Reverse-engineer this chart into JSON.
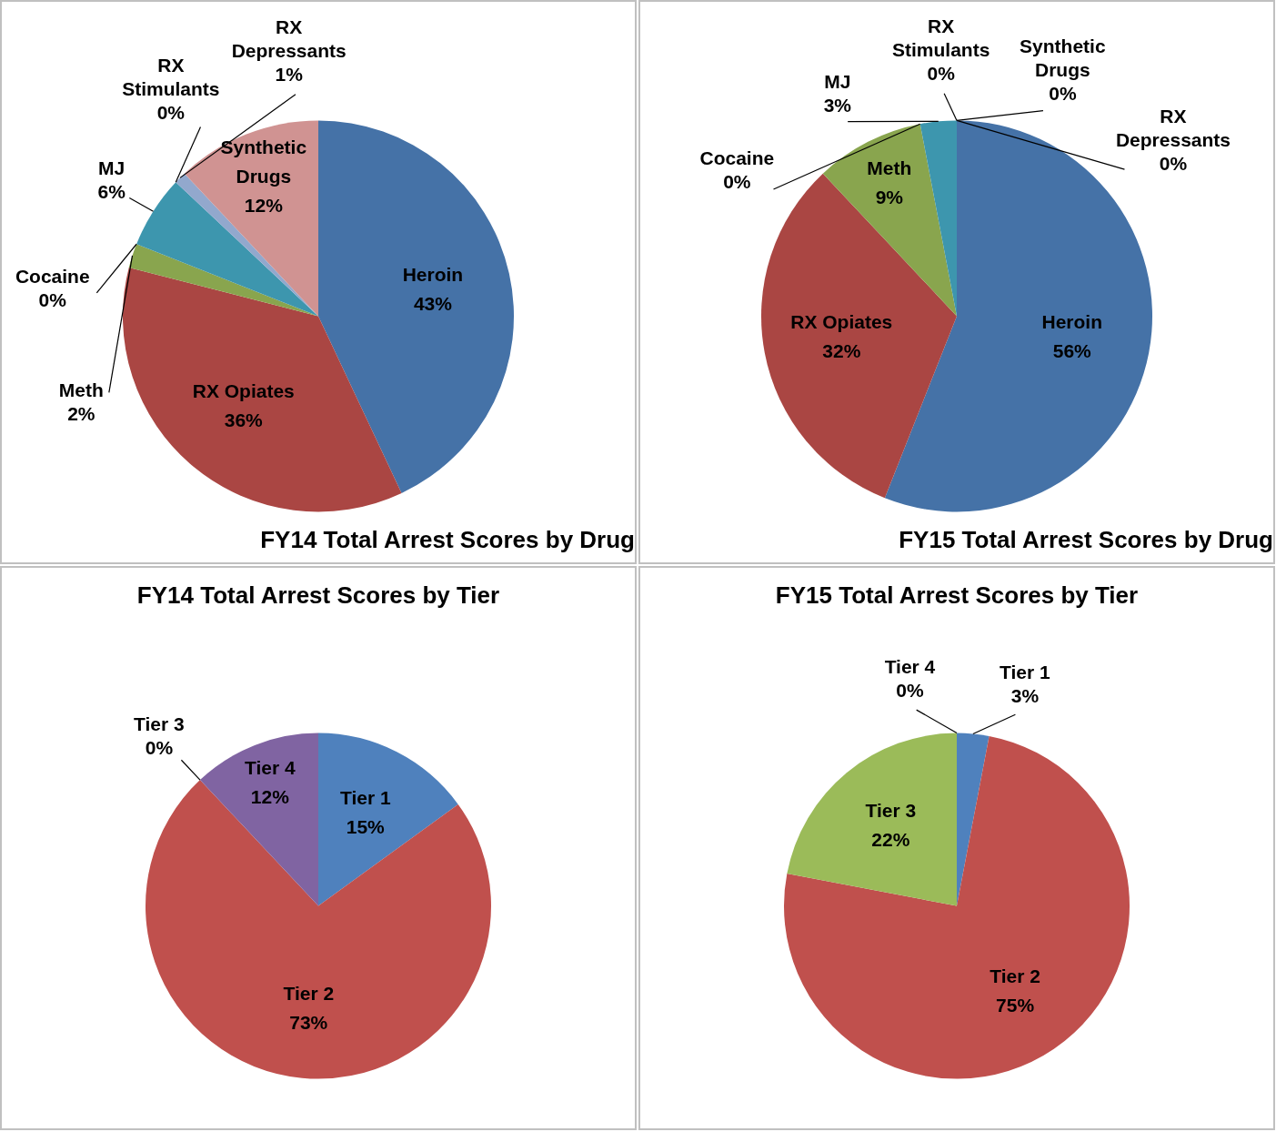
{
  "chart_data": [
    {
      "type": "pie",
      "title": "FY14 Total Arrest Scores by Drug",
      "categories": [
        "Heroin",
        "RX Opiates",
        "Meth",
        "Cocaine",
        "MJ",
        "RX Stimulants",
        "RX Depressants",
        "Synthetic Drugs"
      ],
      "values": [
        43,
        36,
        2,
        0,
        6,
        0,
        1,
        12
      ],
      "value_labels": [
        "43%",
        "36%",
        "2%",
        "0%",
        "6%",
        "0%",
        "1%",
        "12%"
      ],
      "colors": [
        "#4572a7",
        "#aa4643",
        "#89a54e",
        "#80699b",
        "#3d96ae",
        "#db843d",
        "#92a8cd",
        "#d09392"
      ],
      "legend": false
    },
    {
      "type": "pie",
      "title": "FY15 Total Arrest Scores by Drug",
      "categories": [
        "Heroin",
        "RX Opiates",
        "Meth",
        "Cocaine",
        "MJ",
        "RX Stimulants",
        "Synthetic Drugs",
        "RX Depressants"
      ],
      "values": [
        56,
        32,
        9,
        0,
        3,
        0,
        0,
        0
      ],
      "value_labels": [
        "56%",
        "32%",
        "9%",
        "0%",
        "3%",
        "0%",
        "0%",
        "0%"
      ],
      "colors": [
        "#4572a7",
        "#aa4643",
        "#89a54e",
        "#80699b",
        "#3d96ae",
        "#db843d",
        "#d09392",
        "#92a8cd"
      ],
      "legend": false
    },
    {
      "type": "pie",
      "title": "FY14 Total Arrest Scores by Tier",
      "categories": [
        "Tier 1",
        "Tier 2",
        "Tier 3",
        "Tier 4"
      ],
      "values": [
        15,
        73,
        0,
        12
      ],
      "value_labels": [
        "15%",
        "73%",
        "0%",
        "12%"
      ],
      "colors": [
        "#4f81bd",
        "#c0504d",
        "#9bbb59",
        "#8064a2"
      ],
      "legend": false
    },
    {
      "type": "pie",
      "title": "FY15 Total Arrest Scores by Tier",
      "categories": [
        "Tier 1",
        "Tier 2",
        "Tier 3",
        "Tier 4"
      ],
      "values": [
        3,
        75,
        22,
        0
      ],
      "value_labels": [
        "3%",
        "75%",
        "22%",
        "0%"
      ],
      "colors": [
        "#4f81bd",
        "#c0504d",
        "#9bbb59",
        "#8064a2"
      ],
      "legend": false
    }
  ]
}
